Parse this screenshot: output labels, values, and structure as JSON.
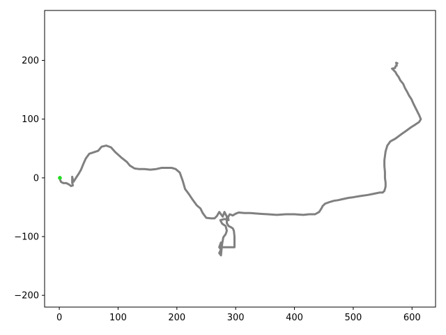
{
  "chart_data": {
    "type": "line",
    "title": "",
    "xlabel": "",
    "ylabel": "",
    "xlim": [
      -25,
      640
    ],
    "ylim": [
      -220,
      285
    ],
    "xticks": [
      0,
      100,
      200,
      300,
      400,
      500,
      600
    ],
    "yticks": [
      -200,
      -100,
      0,
      100,
      200
    ],
    "xtick_labels": [
      "0",
      "100",
      "200",
      "300",
      "400",
      "500",
      "600"
    ],
    "ytick_labels": [
      "−200",
      "−100",
      "0",
      "100",
      "200"
    ],
    "grid": false,
    "legend": "none",
    "series": [
      {
        "color": "#808080",
        "points": [
          [
            0,
            0
          ],
          [
            3,
            -7
          ],
          [
            7,
            -9
          ],
          [
            12,
            -9
          ],
          [
            16,
            -11
          ],
          [
            20,
            -14
          ],
          [
            23,
            -13
          ],
          [
            22,
            -8
          ],
          [
            22,
            2
          ],
          [
            24,
            -7
          ],
          [
            26,
            -4
          ],
          [
            29,
            1
          ],
          [
            33,
            7
          ],
          [
            37,
            14
          ],
          [
            41,
            24
          ],
          [
            45,
            33
          ],
          [
            51,
            41
          ],
          [
            60,
            44
          ],
          [
            66,
            46
          ],
          [
            72,
            53
          ],
          [
            80,
            55
          ],
          [
            88,
            52
          ],
          [
            95,
            44
          ],
          [
            105,
            35
          ],
          [
            115,
            27
          ],
          [
            120,
            21
          ],
          [
            128,
            16
          ],
          [
            135,
            15
          ],
          [
            145,
            15
          ],
          [
            155,
            14
          ],
          [
            165,
            15
          ],
          [
            174,
            17
          ],
          [
            183,
            17
          ],
          [
            191,
            17
          ],
          [
            198,
            15
          ],
          [
            205,
            9
          ],
          [
            210,
            -5
          ],
          [
            214,
            -19
          ],
          [
            220,
            -27
          ],
          [
            226,
            -36
          ],
          [
            234,
            -47
          ],
          [
            240,
            -52
          ],
          [
            244,
            -60
          ],
          [
            250,
            -68
          ],
          [
            258,
            -69
          ],
          [
            264,
            -69
          ],
          [
            268,
            -65
          ],
          [
            272,
            -58
          ],
          [
            275,
            -62
          ],
          [
            278,
            -66
          ],
          [
            281,
            -58
          ],
          [
            285,
            -66
          ],
          [
            285,
            -77
          ],
          [
            288,
            -82
          ],
          [
            292,
            -84
          ],
          [
            295,
            -86
          ],
          [
            297,
            -90
          ],
          [
            298,
            -100
          ],
          [
            298,
            -110
          ],
          [
            298,
            -118
          ],
          [
            295,
            -118
          ],
          [
            288,
            -118
          ],
          [
            280,
            -118
          ],
          [
            275,
            -118
          ],
          [
            275,
            -110
          ],
          [
            272,
            -118
          ],
          [
            275,
            -122
          ],
          [
            272,
            -128
          ],
          [
            275,
            -132
          ],
          [
            276,
            -122
          ],
          [
            277,
            -112
          ],
          [
            279,
            -101
          ],
          [
            283,
            -96
          ],
          [
            285,
            -90
          ],
          [
            283,
            -82
          ],
          [
            277,
            -78
          ],
          [
            274,
            -72
          ],
          [
            281,
            -70
          ],
          [
            288,
            -72
          ],
          [
            287,
            -67
          ],
          [
            290,
            -62
          ],
          [
            295,
            -64
          ],
          [
            300,
            -61
          ],
          [
            305,
            -59
          ],
          [
            315,
            -60
          ],
          [
            325,
            -60
          ],
          [
            340,
            -61
          ],
          [
            355,
            -62
          ],
          [
            370,
            -63
          ],
          [
            385,
            -62
          ],
          [
            400,
            -62
          ],
          [
            415,
            -63
          ],
          [
            425,
            -62
          ],
          [
            435,
            -62
          ],
          [
            442,
            -58
          ],
          [
            446,
            -52
          ],
          [
            448,
            -48
          ],
          [
            452,
            -44
          ],
          [
            460,
            -41
          ],
          [
            467,
            -39
          ],
          [
            474,
            -38
          ],
          [
            483,
            -36
          ],
          [
            492,
            -34
          ],
          [
            500,
            -33
          ],
          [
            512,
            -31
          ],
          [
            525,
            -29
          ],
          [
            535,
            -27
          ],
          [
            545,
            -25
          ],
          [
            550,
            -25
          ],
          [
            553,
            -22
          ],
          [
            555,
            -15
          ],
          [
            555,
            -8
          ],
          [
            554,
            0
          ],
          [
            554,
            10
          ],
          [
            553,
            20
          ],
          [
            553,
            30
          ],
          [
            555,
            45
          ],
          [
            558,
            55
          ],
          [
            563,
            62
          ],
          [
            572,
            67
          ],
          [
            580,
            73
          ],
          [
            590,
            80
          ],
          [
            598,
            86
          ],
          [
            606,
            91
          ],
          [
            612,
            95
          ],
          [
            615,
            100
          ],
          [
            612,
            107
          ],
          [
            608,
            115
          ],
          [
            603,
            125
          ],
          [
            599,
            134
          ],
          [
            595,
            140
          ],
          [
            592,
            146
          ],
          [
            588,
            153
          ],
          [
            585,
            160
          ],
          [
            580,
            166
          ],
          [
            577,
            172
          ],
          [
            574,
            176
          ],
          [
            572,
            180
          ],
          [
            569,
            183
          ],
          [
            566,
            186
          ],
          [
            571,
            187
          ],
          [
            572,
            190
          ],
          [
            574,
            191
          ],
          [
            573,
            196
          ],
          [
            575,
            195
          ]
        ]
      },
      {
        "color": "#22dd22",
        "points": [
          [
            0,
            0
          ],
          [
            1,
            1
          ],
          [
            2,
            0
          ],
          [
            1,
            -1
          ]
        ]
      }
    ]
  }
}
